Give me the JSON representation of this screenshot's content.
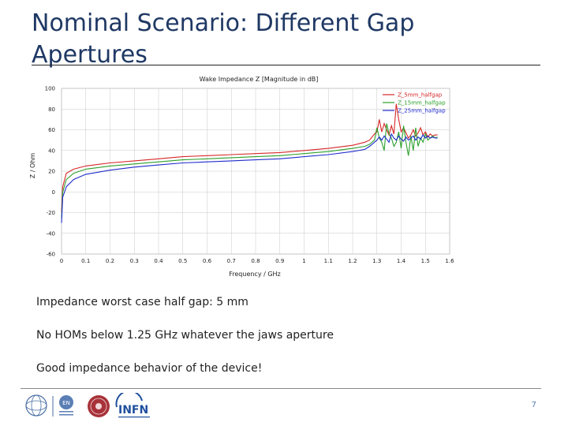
{
  "slide": {
    "title": "Nominal Scenario: Different Gap Apertures",
    "bullets": [
      "Impedance worst case half gap: 5 mm",
      "No HOMs below 1.25 GHz whatever the jaws aperture",
      "Good impedance behavior of the device!"
    ],
    "page_number": "7",
    "logos": [
      "cern-logo",
      "en-logo",
      "university-seal-logo",
      "infn-logo"
    ],
    "logo_texts": {
      "en": "EN",
      "infn": "INFN"
    }
  },
  "chart_data": {
    "type": "line",
    "title": "Wake Impedance Z [Magnitude in dB]",
    "xlabel": "Frequency / GHz",
    "ylabel": "Z / Ohm",
    "xlim": [
      0,
      1.6
    ],
    "ylim": [
      -60,
      100
    ],
    "xticks": [
      "0",
      "0.1",
      "0.2",
      "0.3",
      "0.4",
      "0.5",
      "0.6",
      "0.7",
      "0.8",
      "0.9",
      "1",
      "1.1",
      "1.2",
      "1.3",
      "1.4",
      "1.5",
      "1.6"
    ],
    "yticks": [
      "100",
      "80",
      "60",
      "40",
      "20",
      "0",
      "-20",
      "-40",
      "-60"
    ],
    "grid": true,
    "legend_position": "top-right",
    "series": [
      {
        "name": "Z_5mm_halfgap",
        "color": "#d62728",
        "x": [
          0,
          0.005,
          0.02,
          0.05,
          0.1,
          0.2,
          0.3,
          0.4,
          0.5,
          0.6,
          0.7,
          0.8,
          0.9,
          1.0,
          1.1,
          1.2,
          1.25,
          1.27,
          1.29,
          1.3,
          1.31,
          1.32,
          1.33,
          1.34,
          1.35,
          1.36,
          1.37,
          1.38,
          1.39,
          1.4,
          1.41,
          1.42,
          1.43,
          1.44,
          1.45,
          1.46,
          1.47,
          1.48,
          1.49,
          1.5,
          1.51,
          1.52,
          1.53,
          1.54,
          1.55
        ],
        "y": [
          -20,
          5,
          18,
          22,
          25,
          28,
          30,
          32,
          34,
          35,
          36,
          37,
          38,
          40,
          42,
          45,
          48,
          50,
          56,
          58,
          70,
          58,
          66,
          60,
          55,
          64,
          56,
          85,
          70,
          58,
          62,
          57,
          52,
          55,
          60,
          54,
          57,
          62,
          55,
          58,
          53,
          56,
          54,
          55,
          55
        ]
      },
      {
        "name": "Z_15mm_halfgap",
        "color": "#2ca02c",
        "x": [
          0,
          0.005,
          0.02,
          0.05,
          0.1,
          0.2,
          0.3,
          0.4,
          0.5,
          0.6,
          0.7,
          0.8,
          0.9,
          1.0,
          1.1,
          1.2,
          1.25,
          1.27,
          1.29,
          1.3,
          1.31,
          1.32,
          1.33,
          1.34,
          1.35,
          1.36,
          1.37,
          1.38,
          1.39,
          1.4,
          1.41,
          1.42,
          1.43,
          1.44,
          1.45,
          1.46,
          1.47,
          1.48,
          1.49,
          1.5,
          1.51,
          1.52,
          1.53,
          1.54,
          1.55
        ],
        "y": [
          -25,
          0,
          12,
          18,
          22,
          25,
          27,
          29,
          31,
          32,
          33,
          34,
          35,
          37,
          39,
          42,
          44,
          46,
          50,
          62,
          52,
          48,
          40,
          66,
          56,
          52,
          44,
          48,
          58,
          42,
          64,
          48,
          35,
          54,
          40,
          62,
          44,
          52,
          48,
          56,
          50,
          52,
          54,
          52,
          53
        ]
      },
      {
        "name": "Z_25mm_halfgap",
        "color": "#1f2bcc",
        "x": [
          0,
          0.005,
          0.02,
          0.05,
          0.1,
          0.2,
          0.3,
          0.4,
          0.5,
          0.6,
          0.7,
          0.8,
          0.9,
          1.0,
          1.1,
          1.2,
          1.25,
          1.27,
          1.29,
          1.3,
          1.31,
          1.32,
          1.33,
          1.34,
          1.35,
          1.36,
          1.37,
          1.38,
          1.39,
          1.4,
          1.41,
          1.42,
          1.43,
          1.44,
          1.45,
          1.46,
          1.47,
          1.48,
          1.49,
          1.5,
          1.51,
          1.52,
          1.53,
          1.54,
          1.55
        ],
        "y": [
          -30,
          -5,
          5,
          12,
          17,
          21,
          24,
          26,
          28,
          29,
          30,
          31,
          32,
          34,
          36,
          39,
          41,
          44,
          48,
          50,
          53,
          50,
          54,
          51,
          48,
          56,
          52,
          50,
          54,
          51,
          49,
          53,
          50,
          52,
          54,
          50,
          53,
          51,
          55,
          52,
          54,
          52,
          53,
          52,
          52
        ]
      }
    ]
  }
}
